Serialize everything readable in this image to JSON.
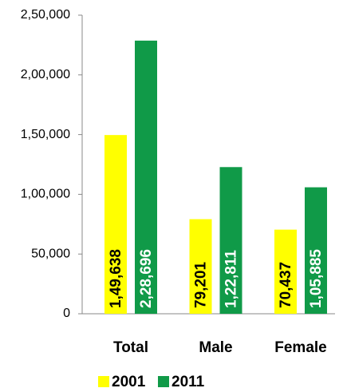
{
  "chart_data": {
    "type": "bar",
    "categories": [
      "Total",
      "Male",
      "Female"
    ],
    "series": [
      {
        "name": "2001",
        "color": "#ffff00",
        "label_color": "#000000",
        "values": [
          149638,
          79201,
          70437
        ],
        "value_labels": [
          "1,49,638",
          "79,201",
          "70,437"
        ]
      },
      {
        "name": "2011",
        "color": "#109a48",
        "label_color": "#ffffff",
        "values": [
          228696,
          122811,
          105885
        ],
        "value_labels": [
          "2,28,696",
          "1,22,811",
          "1,05,885"
        ]
      }
    ],
    "ylim": [
      0,
      250000
    ],
    "yticks": [
      0,
      {
        "value": 50000,
        "label": "50,000"
      },
      {
        "value": 100000,
        "label": "1,00,000"
      },
      {
        "value": 150000,
        "label": "1,50,000"
      },
      {
        "value": 200000,
        "label": "2,00,000"
      },
      {
        "value": 250000,
        "label": "2,50,000"
      }
    ],
    "grid": false,
    "legend": "bottom"
  }
}
